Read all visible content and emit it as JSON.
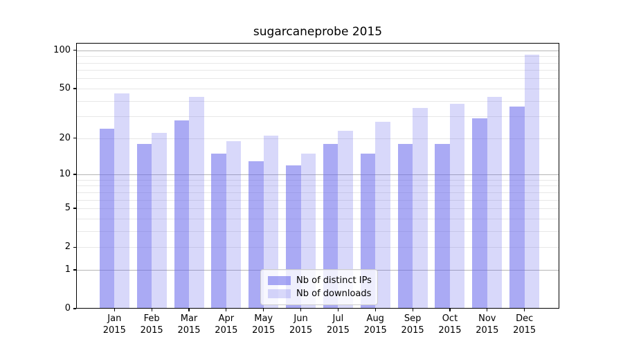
{
  "chart_data": {
    "type": "bar",
    "title": "sugarcaneprobe 2015",
    "xlabel": "",
    "ylabel": "",
    "year": "2015",
    "categories": [
      "Jan",
      "Feb",
      "Mar",
      "Apr",
      "May",
      "Jun",
      "Jul",
      "Aug",
      "Sep",
      "Oct",
      "Nov",
      "Dec"
    ],
    "series": [
      {
        "name": "Nb of distinct IPs",
        "color": "rgba(100,100,235,0.55)",
        "values": [
          24,
          18,
          28,
          15,
          13,
          12,
          18,
          15,
          18,
          18,
          29,
          36
        ]
      },
      {
        "name": "Nb of downloads",
        "color": "rgba(100,100,235,0.25)",
        "values": [
          46,
          22,
          43,
          19,
          21,
          15,
          23,
          27,
          35,
          38,
          43,
          93
        ]
      }
    ],
    "y_scale": "log10(1+v)",
    "y_ticks": [
      0,
      1,
      2,
      5,
      10,
      20,
      50,
      100
    ],
    "y_major_gridlines": [
      1,
      10,
      100
    ],
    "y_minor_gridlines": [
      2,
      3,
      4,
      5,
      6,
      7,
      8,
      9,
      20,
      30,
      40,
      50,
      60,
      70,
      80,
      90
    ],
    "ylim": [
      0,
      114
    ],
    "grid": true,
    "legend_position": "lower center"
  }
}
